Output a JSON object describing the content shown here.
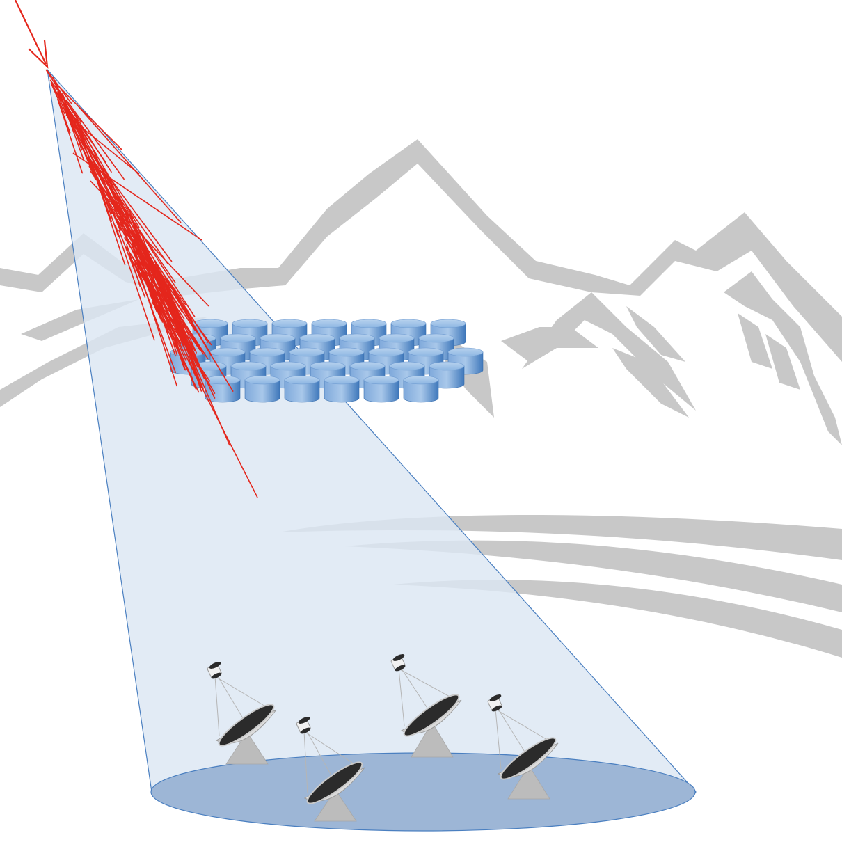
{
  "diagram": {
    "elements": [
      {
        "name": "mountain-range",
        "kind": "background"
      },
      {
        "name": "incoming-particle-arrow",
        "kind": "arrow"
      },
      {
        "name": "particle-shower",
        "kind": "shower"
      },
      {
        "name": "cherenkov-light-cone",
        "kind": "cone"
      },
      {
        "name": "water-tank-array",
        "kind": "detector-array"
      },
      {
        "name": "telescope-array",
        "kind": "telescopes",
        "count": 4
      }
    ],
    "colors": {
      "mountain": "#c8c8c8",
      "shower": "#e4261c",
      "cone_fill": "#dce7f3",
      "cone_stroke": "#4a7fc0",
      "pool": "#9db6d6",
      "tank_top": "#9cc1e6",
      "tank_side": "#4f86c4",
      "dish": "#2b2b2b",
      "dish_rim": "#c9c9c9",
      "mount": "#bcbcbc"
    }
  }
}
